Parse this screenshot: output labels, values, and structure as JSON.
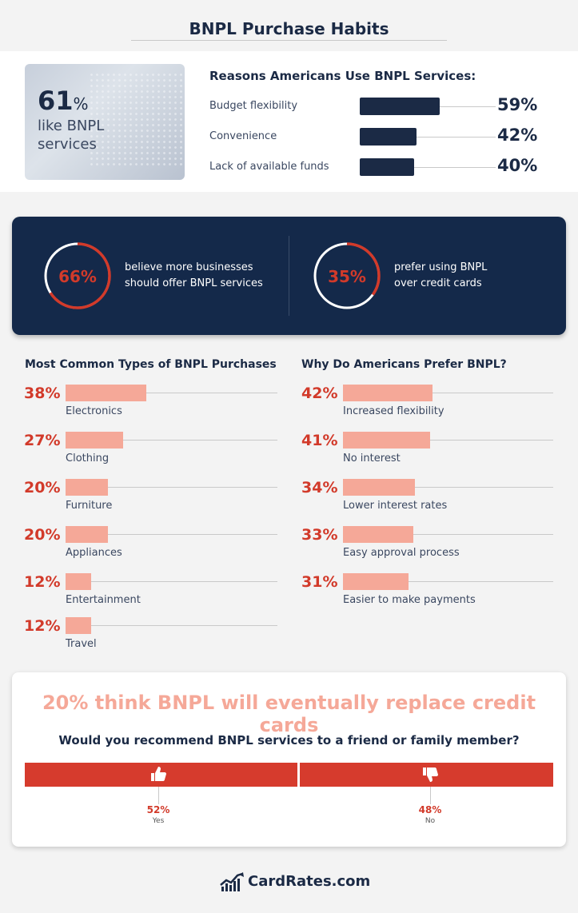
{
  "title": "BNPL Purchase Habits",
  "headline_stat": {
    "value": "61",
    "suffix": "%",
    "text": "like BNPL services"
  },
  "chart_data": [
    {
      "type": "bar",
      "title": "Reasons Americans Use BNPL Services:",
      "categories": [
        "Budget flexibility",
        "Convenience",
        "Lack of available funds"
      ],
      "values": [
        59,
        42,
        40
      ],
      "labels": [
        "59%",
        "42%",
        "40%"
      ],
      "unit": "%"
    },
    {
      "type": "bar",
      "title": "Most Common Types of BNPL Purchases",
      "categories": [
        "Electronics",
        "Clothing",
        "Furniture",
        "Appliances",
        "Entertainment",
        "Travel"
      ],
      "values": [
        38,
        27,
        20,
        20,
        12,
        12
      ],
      "labels": [
        "38%",
        "27%",
        "20%",
        "20%",
        "12%",
        "12%"
      ],
      "unit": "%"
    },
    {
      "type": "bar",
      "title": "Why Do Americans Prefer BNPL?",
      "categories": [
        "Increased flexibility",
        "No interest",
        "Lower interest rates",
        "Easy approval process",
        "Easier to make payments"
      ],
      "values": [
        42,
        41,
        34,
        33,
        31
      ],
      "labels": [
        "42%",
        "41%",
        "34%",
        "33%",
        "31%"
      ],
      "unit": "%"
    },
    {
      "type": "bar",
      "title": "Would you recommend BNPL services to a friend or family member?",
      "categories": [
        "Yes",
        "No"
      ],
      "values": [
        52,
        48
      ],
      "labels": [
        "52%",
        "48%"
      ],
      "unit": "%"
    }
  ],
  "rings": [
    {
      "value": 66,
      "label": "66%",
      "text_line1": "believe more businesses",
      "text_line2": "should offer BNPL services"
    },
    {
      "value": 35,
      "label": "35%",
      "text_line1": "prefer using BNPL",
      "text_line2": "over credit cards"
    }
  ],
  "replace_headline": "20% think BNPL will eventually replace credit cards",
  "icons": {
    "yes": "thumbs-up-icon",
    "no": "thumbs-down-icon",
    "logo": "chart-line-logo-icon"
  },
  "colors": {
    "navy": "#1b2a45",
    "panel": "#14294a",
    "red": "#d23a2a",
    "salmon": "#f5a898"
  },
  "footer": {
    "brand": "CardRates.com"
  }
}
